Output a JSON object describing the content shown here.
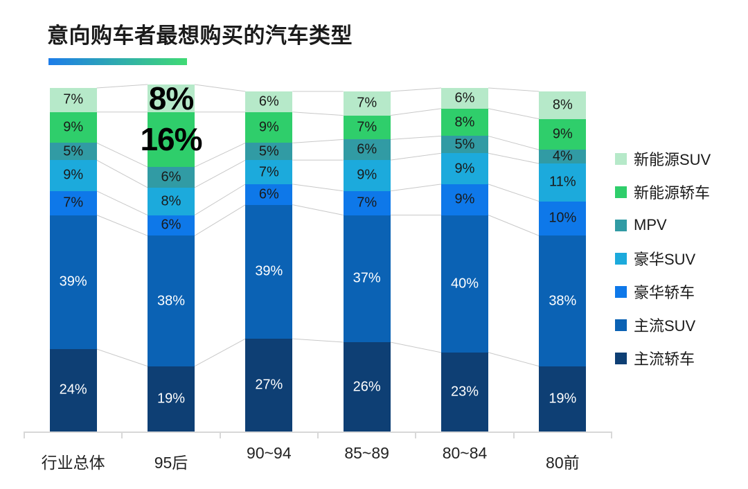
{
  "title": "意向购车者最想购买的汽车类型",
  "accent": {
    "gradient_from": "#1d7ce9",
    "gradient_to": "#40da74"
  },
  "chart_data": {
    "type": "bar",
    "stacked": true,
    "unit": "%",
    "title": "意向购车者最想购买的汽车类型",
    "categories": [
      "行业总体",
      "95后",
      "90~94",
      "85~89",
      "80~84",
      "80前"
    ],
    "series": [
      {
        "name": "主流轿车",
        "color": "#0e3f74",
        "label_style": "light",
        "values": [
          24,
          19,
          27,
          26,
          23,
          19
        ]
      },
      {
        "name": "主流SUV",
        "color": "#0b62b4",
        "label_style": "light",
        "values": [
          39,
          38,
          39,
          37,
          40,
          38
        ]
      },
      {
        "name": "豪华轿车",
        "color": "#0e78e9",
        "label_style": "dark",
        "values": [
          7,
          6,
          6,
          7,
          9,
          10
        ]
      },
      {
        "name": "豪华SUV",
        "color": "#1caadc",
        "label_style": "dark",
        "values": [
          9,
          8,
          7,
          9,
          9,
          11
        ]
      },
      {
        "name": "MPV",
        "color": "#319ba4",
        "label_style": "dark",
        "values": [
          5,
          6,
          5,
          6,
          5,
          4
        ]
      },
      {
        "name": "新能源轿车",
        "color": "#2fce6b",
        "label_style": "dark",
        "values": [
          9,
          16,
          9,
          7,
          8,
          9
        ]
      },
      {
        "name": "新能源SUV",
        "color": "#b6e9c9",
        "label_style": "dark",
        "values": [
          7,
          8,
          6,
          7,
          6,
          8
        ]
      }
    ],
    "legend_position": "right",
    "legend_order_top_to_bottom": [
      "新能源SUV",
      "新能源轿车",
      "MPV",
      "豪华SUV",
      "豪华轿车",
      "主流SUV",
      "主流轿车"
    ],
    "highlight": {
      "category": "95后",
      "series": [
        "新能源SUV",
        "新能源轿车"
      ],
      "labels": [
        "8%",
        "16%"
      ]
    },
    "ylim": [
      0,
      100
    ],
    "grid": false,
    "connector_lines": true
  }
}
